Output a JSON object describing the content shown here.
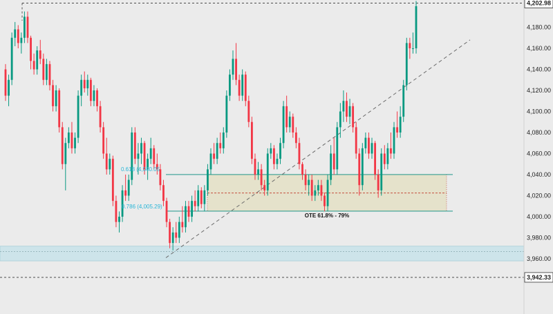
{
  "chart_data": {
    "type": "candlestick",
    "title": "",
    "xlabel": "",
    "ylabel": "",
    "ylim": [
      3940,
      4210
    ],
    "y_ticks": [
      "4,180.00",
      "4,160.00",
      "4,140.00",
      "4,120.00",
      "4,100.00",
      "4,080.00",
      "4,060.00",
      "4,040.00",
      "4,020.00",
      "4,000.00",
      "3,980.00",
      "3,960.00"
    ],
    "y_tick_values": [
      4180,
      4160,
      4140,
      4120,
      4100,
      4080,
      4060,
      4040,
      4020,
      4000,
      3980,
      3960
    ],
    "price_markers": [
      {
        "label": "4,202.98",
        "value": 4202.98
      },
      {
        "label": "3,942.33",
        "value": 3942.33
      }
    ],
    "fib_labels": [
      {
        "label": "0.618 (4,040.05",
        "value": 4040.05
      },
      {
        "label": "0.786 (4,005.29)",
        "value": 4005.29
      }
    ],
    "ote_zone": {
      "label": "OTE 61.8% - 79%",
      "top": 4040.05,
      "bottom": 4005.29,
      "midline": 4022.5
    },
    "support_zone": {
      "top": 3972,
      "bottom": 3958,
      "inner_line": 3967
    },
    "trendline": {
      "start": 3961,
      "end": 4168
    },
    "colors": {
      "up": "#089981",
      "down": "#f23645",
      "fib": "#29b6d8",
      "zone_fill": "#e4e0c6",
      "zone_border": "#00897b",
      "support_fill": "#cde4ea"
    },
    "candles": [
      {
        "o": 4140,
        "h": 4145,
        "l": 4110,
        "c": 4115
      },
      {
        "o": 4115,
        "h": 4135,
        "l": 4105,
        "c": 4130
      },
      {
        "o": 4130,
        "h": 4175,
        "l": 4125,
        "c": 4170
      },
      {
        "o": 4170,
        "h": 4185,
        "l": 4162,
        "c": 4178
      },
      {
        "o": 4178,
        "h": 4182,
        "l": 4160,
        "c": 4165
      },
      {
        "o": 4165,
        "h": 4175,
        "l": 4155,
        "c": 4170
      },
      {
        "o": 4170,
        "h": 4195,
        "l": 4165,
        "c": 4190
      },
      {
        "o": 4190,
        "h": 4195,
        "l": 4165,
        "c": 4170
      },
      {
        "o": 4170,
        "h": 4172,
        "l": 4140,
        "c": 4148
      },
      {
        "o": 4148,
        "h": 4155,
        "l": 4135,
        "c": 4140
      },
      {
        "o": 4140,
        "h": 4162,
        "l": 4135,
        "c": 4158
      },
      {
        "o": 4158,
        "h": 4168,
        "l": 4145,
        "c": 4150
      },
      {
        "o": 4150,
        "h": 4155,
        "l": 4125,
        "c": 4130
      },
      {
        "o": 4130,
        "h": 4150,
        "l": 4125,
        "c": 4145
      },
      {
        "o": 4145,
        "h": 4148,
        "l": 4120,
        "c": 4125
      },
      {
        "o": 4125,
        "h": 4130,
        "l": 4100,
        "c": 4105
      },
      {
        "o": 4105,
        "h": 4125,
        "l": 4100,
        "c": 4120
      },
      {
        "o": 4120,
        "h": 4122,
        "l": 4080,
        "c": 4085
      },
      {
        "o": 4085,
        "h": 4090,
        "l": 4045,
        "c": 4050
      },
      {
        "o": 4050,
        "h": 4075,
        "l": 4025,
        "c": 4070
      },
      {
        "o": 4070,
        "h": 4085,
        "l": 4065,
        "c": 4080
      },
      {
        "o": 4080,
        "h": 4090,
        "l": 4060,
        "c": 4065
      },
      {
        "o": 4065,
        "h": 4080,
        "l": 4060,
        "c": 4075
      },
      {
        "o": 4075,
        "h": 4120,
        "l": 4070,
        "c": 4115
      },
      {
        "o": 4115,
        "h": 4135,
        "l": 4105,
        "c": 4130
      },
      {
        "o": 4130,
        "h": 4138,
        "l": 4118,
        "c": 4122
      },
      {
        "o": 4122,
        "h": 4135,
        "l": 4115,
        "c": 4130
      },
      {
        "o": 4130,
        "h": 4132,
        "l": 4105,
        "c": 4110
      },
      {
        "o": 4110,
        "h": 4125,
        "l": 4105,
        "c": 4120
      },
      {
        "o": 4120,
        "h": 4122,
        "l": 4100,
        "c": 4105
      },
      {
        "o": 4105,
        "h": 4110,
        "l": 4080,
        "c": 4085
      },
      {
        "o": 4085,
        "h": 4090,
        "l": 4055,
        "c": 4060
      },
      {
        "o": 4060,
        "h": 4075,
        "l": 4040,
        "c": 4045
      },
      {
        "o": 4045,
        "h": 4060,
        "l": 4040,
        "c": 4055
      },
      {
        "o": 4055,
        "h": 4058,
        "l": 4010,
        "c": 4015
      },
      {
        "o": 4015,
        "h": 4020,
        "l": 3990,
        "c": 3995
      },
      {
        "o": 3995,
        "h": 4005,
        "l": 3985,
        "c": 4000
      },
      {
        "o": 4000,
        "h": 4030,
        "l": 3995,
        "c": 4025
      },
      {
        "o": 4025,
        "h": 4040,
        "l": 4015,
        "c": 4020
      },
      {
        "o": 4020,
        "h": 4040,
        "l": 4015,
        "c": 4035
      },
      {
        "o": 4035,
        "h": 4085,
        "l": 4030,
        "c": 4080
      },
      {
        "o": 4080,
        "h": 4085,
        "l": 4050,
        "c": 4055
      },
      {
        "o": 4055,
        "h": 4070,
        "l": 4040,
        "c": 4060
      },
      {
        "o": 4060,
        "h": 4075,
        "l": 4050,
        "c": 4070
      },
      {
        "o": 4070,
        "h": 4072,
        "l": 4040,
        "c": 4045
      },
      {
        "o": 4045,
        "h": 4060,
        "l": 4035,
        "c": 4055
      },
      {
        "o": 4055,
        "h": 4075,
        "l": 4050,
        "c": 4065
      },
      {
        "o": 4065,
        "h": 4068,
        "l": 4045,
        "c": 4050
      },
      {
        "o": 4050,
        "h": 4060,
        "l": 4040,
        "c": 4045
      },
      {
        "o": 4045,
        "h": 4050,
        "l": 4025,
        "c": 4030
      },
      {
        "o": 4030,
        "h": 4035,
        "l": 4010,
        "c": 4015
      },
      {
        "o": 4015,
        "h": 4018,
        "l": 3990,
        "c": 3995
      },
      {
        "o": 3995,
        "h": 3998,
        "l": 3970,
        "c": 3975
      },
      {
        "o": 3975,
        "h": 3990,
        "l": 3968,
        "c": 3985
      },
      {
        "o": 3985,
        "h": 3995,
        "l": 3975,
        "c": 3980
      },
      {
        "o": 3980,
        "h": 4000,
        "l": 3975,
        "c": 3995
      },
      {
        "o": 3995,
        "h": 4010,
        "l": 3985,
        "c": 3990
      },
      {
        "o": 3990,
        "h": 4015,
        "l": 3985,
        "c": 4010
      },
      {
        "o": 4010,
        "h": 4015,
        "l": 3995,
        "c": 4000
      },
      {
        "o": 4000,
        "h": 4020,
        "l": 3995,
        "c": 4015
      },
      {
        "o": 4015,
        "h": 4025,
        "l": 4005,
        "c": 4010
      },
      {
        "o": 4010,
        "h": 4030,
        "l": 4005,
        "c": 4025
      },
      {
        "o": 4025,
        "h": 4028,
        "l": 4008,
        "c": 4012
      },
      {
        "o": 4012,
        "h": 4030,
        "l": 4005,
        "c": 4025
      },
      {
        "o": 4025,
        "h": 4050,
        "l": 4020,
        "c": 4045
      },
      {
        "o": 4045,
        "h": 4065,
        "l": 4040,
        "c": 4060
      },
      {
        "o": 4060,
        "h": 4070,
        "l": 4050,
        "c": 4055
      },
      {
        "o": 4055,
        "h": 4075,
        "l": 4050,
        "c": 4070
      },
      {
        "o": 4070,
        "h": 4080,
        "l": 4060,
        "c": 4065
      },
      {
        "o": 4065,
        "h": 4085,
        "l": 4060,
        "c": 4080
      },
      {
        "o": 4080,
        "h": 4120,
        "l": 4075,
        "c": 4115
      },
      {
        "o": 4115,
        "h": 4140,
        "l": 4110,
        "c": 4135
      },
      {
        "o": 4135,
        "h": 4158,
        "l": 4130,
        "c": 4150
      },
      {
        "o": 4150,
        "h": 4165,
        "l": 4125,
        "c": 4130
      },
      {
        "o": 4130,
        "h": 4135,
        "l": 4110,
        "c": 4115
      },
      {
        "o": 4115,
        "h": 4140,
        "l": 4110,
        "c": 4135
      },
      {
        "o": 4135,
        "h": 4138,
        "l": 4105,
        "c": 4110
      },
      {
        "o": 4110,
        "h": 4115,
        "l": 4085,
        "c": 4090
      },
      {
        "o": 4090,
        "h": 4095,
        "l": 4050,
        "c": 4055
      },
      {
        "o": 4055,
        "h": 4060,
        "l": 4035,
        "c": 4040
      },
      {
        "o": 4040,
        "h": 4052,
        "l": 4035,
        "c": 4045
      },
      {
        "o": 4045,
        "h": 4050,
        "l": 4025,
        "c": 4030
      },
      {
        "o": 4030,
        "h": 4035,
        "l": 4020,
        "c": 4025
      },
      {
        "o": 4025,
        "h": 4065,
        "l": 4020,
        "c": 4060
      },
      {
        "o": 4060,
        "h": 4070,
        "l": 4055,
        "c": 4065
      },
      {
        "o": 4065,
        "h": 4068,
        "l": 4045,
        "c": 4050
      },
      {
        "o": 4050,
        "h": 4060,
        "l": 4045,
        "c": 4055
      },
      {
        "o": 4055,
        "h": 4075,
        "l": 4050,
        "c": 4070
      },
      {
        "o": 4070,
        "h": 4110,
        "l": 4065,
        "c": 4105
      },
      {
        "o": 4105,
        "h": 4115,
        "l": 4080,
        "c": 4085
      },
      {
        "o": 4085,
        "h": 4100,
        "l": 4080,
        "c": 4095
      },
      {
        "o": 4095,
        "h": 4098,
        "l": 4075,
        "c": 4080
      },
      {
        "o": 4080,
        "h": 4085,
        "l": 4065,
        "c": 4070
      },
      {
        "o": 4070,
        "h": 4075,
        "l": 4045,
        "c": 4050
      },
      {
        "o": 4050,
        "h": 4052,
        "l": 4035,
        "c": 4040
      },
      {
        "o": 4040,
        "h": 4045,
        "l": 4025,
        "c": 4030
      },
      {
        "o": 4030,
        "h": 4040,
        "l": 4020,
        "c": 4035
      },
      {
        "o": 4035,
        "h": 4040,
        "l": 4015,
        "c": 4020
      },
      {
        "o": 4020,
        "h": 4030,
        "l": 4015,
        "c": 4025
      },
      {
        "o": 4025,
        "h": 4035,
        "l": 4020,
        "c": 4030
      },
      {
        "o": 4030,
        "h": 4035,
        "l": 4015,
        "c": 4020
      },
      {
        "o": 4020,
        "h": 4023,
        "l": 4005,
        "c": 4010
      },
      {
        "o": 4010,
        "h": 4040,
        "l": 4005,
        "c": 4035
      },
      {
        "o": 4035,
        "h": 4068,
        "l": 4030,
        "c": 4060
      },
      {
        "o": 4060,
        "h": 4075,
        "l": 4040,
        "c": 4045
      },
      {
        "o": 4045,
        "h": 4090,
        "l": 4040,
        "c": 4085
      },
      {
        "o": 4085,
        "h": 4108,
        "l": 4075,
        "c": 4100
      },
      {
        "o": 4100,
        "h": 4120,
        "l": 4090,
        "c": 4110
      },
      {
        "o": 4110,
        "h": 4118,
        "l": 4090,
        "c": 4095
      },
      {
        "o": 4095,
        "h": 4112,
        "l": 4088,
        "c": 4105
      },
      {
        "o": 4105,
        "h": 4108,
        "l": 4080,
        "c": 4085
      },
      {
        "o": 4085,
        "h": 4090,
        "l": 4055,
        "c": 4060
      },
      {
        "o": 4060,
        "h": 4065,
        "l": 4020,
        "c": 4030
      },
      {
        "o": 4030,
        "h": 4070,
        "l": 4025,
        "c": 4065
      },
      {
        "o": 4065,
        "h": 4080,
        "l": 4060,
        "c": 4075
      },
      {
        "o": 4075,
        "h": 4080,
        "l": 4055,
        "c": 4060
      },
      {
        "o": 4060,
        "h": 4075,
        "l": 4055,
        "c": 4070
      },
      {
        "o": 4070,
        "h": 4072,
        "l": 4035,
        "c": 4040
      },
      {
        "o": 4040,
        "h": 4045,
        "l": 4018,
        "c": 4025
      },
      {
        "o": 4025,
        "h": 4065,
        "l": 4020,
        "c": 4060
      },
      {
        "o": 4060,
        "h": 4068,
        "l": 4045,
        "c": 4050
      },
      {
        "o": 4050,
        "h": 4070,
        "l": 4045,
        "c": 4065
      },
      {
        "o": 4065,
        "h": 4080,
        "l": 4055,
        "c": 4060
      },
      {
        "o": 4060,
        "h": 4090,
        "l": 4055,
        "c": 4085
      },
      {
        "o": 4085,
        "h": 4100,
        "l": 4075,
        "c": 4080
      },
      {
        "o": 4080,
        "h": 4105,
        "l": 4075,
        "c": 4095
      },
      {
        "o": 4095,
        "h": 4130,
        "l": 4090,
        "c": 4125
      },
      {
        "o": 4125,
        "h": 4170,
        "l": 4120,
        "c": 4165
      },
      {
        "o": 4165,
        "h": 4170,
        "l": 4150,
        "c": 4160
      },
      {
        "o": 4160,
        "h": 4175,
        "l": 4155,
        "c": 4160
      },
      {
        "o": 4160,
        "h": 4205,
        "l": 4155,
        "c": 4200
      }
    ]
  }
}
